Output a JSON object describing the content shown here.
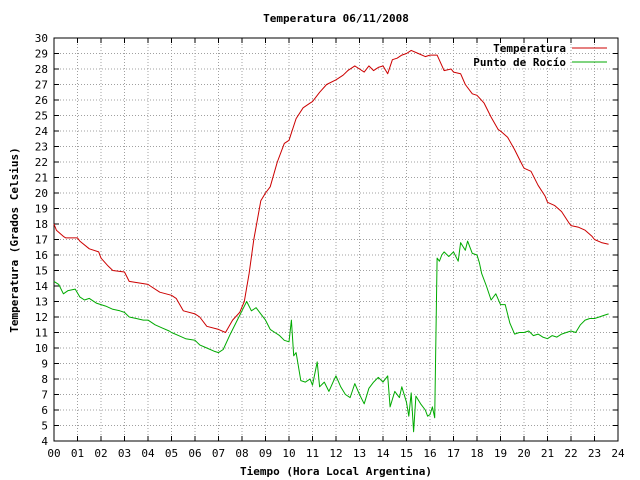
{
  "chart_data": {
    "type": "line",
    "title": "Temperatura 06/11/2008",
    "xlabel": "Tiempo (Hora Local Argentina)",
    "ylabel": "Temperatura (Grados Celsius)",
    "xlim": [
      0,
      24
    ],
    "ylim": [
      4,
      30
    ],
    "x_ticks": [
      "00",
      "01",
      "02",
      "03",
      "04",
      "05",
      "06",
      "07",
      "08",
      "09",
      "10",
      "11",
      "12",
      "13",
      "14",
      "15",
      "16",
      "17",
      "18",
      "19",
      "20",
      "21",
      "22",
      "23",
      "24"
    ],
    "y_ticks": [
      "4",
      "5",
      "6",
      "7",
      "8",
      "9",
      "10",
      "11",
      "12",
      "13",
      "14",
      "15",
      "16",
      "17",
      "18",
      "19",
      "20",
      "21",
      "22",
      "23",
      "24",
      "25",
      "26",
      "27",
      "28",
      "29",
      "30"
    ],
    "grid": true,
    "legend_position": "top-right",
    "series": [
      {
        "name": "Temperatura",
        "color": "#cc0000",
        "x": [
          0,
          0.1,
          0.4,
          0.5,
          1.0,
          1.1,
          1.5,
          1.9,
          2.0,
          2.3,
          2.5,
          3.0,
          3.2,
          3.6,
          4.0,
          4.1,
          4.5,
          5.0,
          5.2,
          5.5,
          6.0,
          6.2,
          6.5,
          7.0,
          7.3,
          7.6,
          7.9,
          8.1,
          8.3,
          8.5,
          8.8,
          9.0,
          9.2,
          9.5,
          9.8,
          10.0,
          10.3,
          10.6,
          10.9,
          11.0,
          11.3,
          11.6,
          12.0,
          12.3,
          12.5,
          12.8,
          13.0,
          13.2,
          13.4,
          13.6,
          13.8,
          14.0,
          14.2,
          14.4,
          14.6,
          14.8,
          15.0,
          15.2,
          15.5,
          15.8,
          16.0,
          16.3,
          16.6,
          16.9,
          17.0,
          17.3,
          17.5,
          17.8,
          18.0,
          18.3,
          18.6,
          18.9,
          19.0,
          19.3,
          19.6,
          19.9,
          20.0,
          20.3,
          20.6,
          20.9,
          21.0,
          21.3,
          21.6,
          21.9,
          22.0,
          22.3,
          22.6,
          22.9,
          23.0,
          23.3,
          23.6
        ],
        "y": [
          18.0,
          17.6,
          17.2,
          17.1,
          17.1,
          16.9,
          16.4,
          16.2,
          15.8,
          15.3,
          15.0,
          14.9,
          14.3,
          14.2,
          14.1,
          14.0,
          13.6,
          13.4,
          13.2,
          12.4,
          12.2,
          12.0,
          11.4,
          11.2,
          11.0,
          11.8,
          12.3,
          13.0,
          14.8,
          17.0,
          19.5,
          20.0,
          20.4,
          22.0,
          23.2,
          23.4,
          24.8,
          25.5,
          25.8,
          25.9,
          26.5,
          27.0,
          27.3,
          27.6,
          27.9,
          28.2,
          28.0,
          27.8,
          28.2,
          27.9,
          28.1,
          28.2,
          27.7,
          28.6,
          28.7,
          28.9,
          29.0,
          29.2,
          29.0,
          28.8,
          28.9,
          28.9,
          27.9,
          28.0,
          27.8,
          27.7,
          27.0,
          26.4,
          26.3,
          25.8,
          24.9,
          24.1,
          24.0,
          23.6,
          22.8,
          21.9,
          21.6,
          21.4,
          20.5,
          19.8,
          19.4,
          19.2,
          18.8,
          18.1,
          17.9,
          17.8,
          17.6,
          17.2,
          17.0,
          16.8,
          16.7
        ]
      },
      {
        "name": "Punto de Rocío",
        "color": "#00aa00",
        "x": [
          0,
          0.2,
          0.4,
          0.6,
          0.9,
          1.1,
          1.3,
          1.5,
          1.8,
          2.0,
          2.2,
          2.5,
          2.8,
          3.0,
          3.2,
          3.5,
          3.8,
          4.0,
          4.3,
          4.6,
          4.9,
          5.0,
          5.3,
          5.6,
          6.0,
          6.2,
          6.5,
          6.8,
          7.0,
          7.2,
          7.5,
          7.8,
          8.0,
          8.2,
          8.4,
          8.6,
          8.8,
          9.0,
          9.2,
          9.4,
          9.6,
          9.8,
          10.0,
          10.1,
          10.2,
          10.3,
          10.5,
          10.7,
          10.9,
          11.0,
          11.2,
          11.3,
          11.5,
          11.7,
          11.9,
          12.0,
          12.2,
          12.4,
          12.6,
          12.8,
          13.0,
          13.2,
          13.4,
          13.6,
          13.8,
          14.0,
          14.2,
          14.3,
          14.5,
          14.7,
          14.8,
          15.0,
          15.1,
          15.2,
          15.3,
          15.4,
          15.6,
          15.8,
          15.9,
          16.0,
          16.1,
          16.2,
          16.3,
          16.4,
          16.5,
          16.6,
          16.8,
          17.0,
          17.2,
          17.3,
          17.5,
          17.6,
          17.8,
          18.0,
          18.1,
          18.2,
          18.4,
          18.6,
          18.8,
          19.0,
          19.2,
          19.4,
          19.6,
          19.8,
          20.0,
          20.2,
          20.4,
          20.6,
          20.8,
          21.0,
          21.2,
          21.4,
          21.6,
          21.8,
          22.0,
          22.2,
          22.4,
          22.6,
          22.8,
          23.0,
          23.2,
          23.4,
          23.6
        ],
        "y": [
          14.3,
          14.1,
          13.5,
          13.7,
          13.8,
          13.3,
          13.1,
          13.2,
          12.9,
          12.8,
          12.7,
          12.5,
          12.4,
          12.3,
          12.0,
          11.9,
          11.8,
          11.8,
          11.5,
          11.3,
          11.1,
          11.0,
          10.8,
          10.6,
          10.5,
          10.2,
          10.0,
          9.8,
          9.7,
          9.9,
          10.9,
          11.8,
          12.4,
          13.0,
          12.4,
          12.6,
          12.2,
          11.8,
          11.2,
          11.0,
          10.8,
          10.5,
          10.4,
          11.8,
          9.5,
          9.7,
          7.9,
          7.8,
          8.0,
          7.6,
          9.1,
          7.5,
          7.8,
          7.2,
          7.9,
          8.2,
          7.5,
          7.0,
          6.8,
          7.7,
          7.0,
          6.4,
          7.4,
          7.8,
          8.1,
          7.8,
          8.2,
          6.2,
          7.2,
          6.8,
          7.5,
          6.5,
          5.6,
          7.1,
          4.6,
          6.9,
          6.4,
          6.0,
          5.6,
          5.7,
          6.2,
          5.5,
          15.8,
          15.6,
          16.0,
          16.2,
          15.9,
          16.2,
          15.6,
          16.8,
          16.3,
          16.9,
          16.1,
          16.0,
          15.5,
          14.8,
          14.0,
          13.1,
          13.5,
          12.8,
          12.8,
          11.6,
          10.9,
          11.0,
          11.0,
          11.1,
          10.8,
          10.9,
          10.7,
          10.6,
          10.8,
          10.7,
          10.9,
          11.0,
          11.1,
          11.0,
          11.5,
          11.8,
          11.9,
          11.9,
          12.0,
          12.1,
          12.2
        ]
      }
    ]
  }
}
